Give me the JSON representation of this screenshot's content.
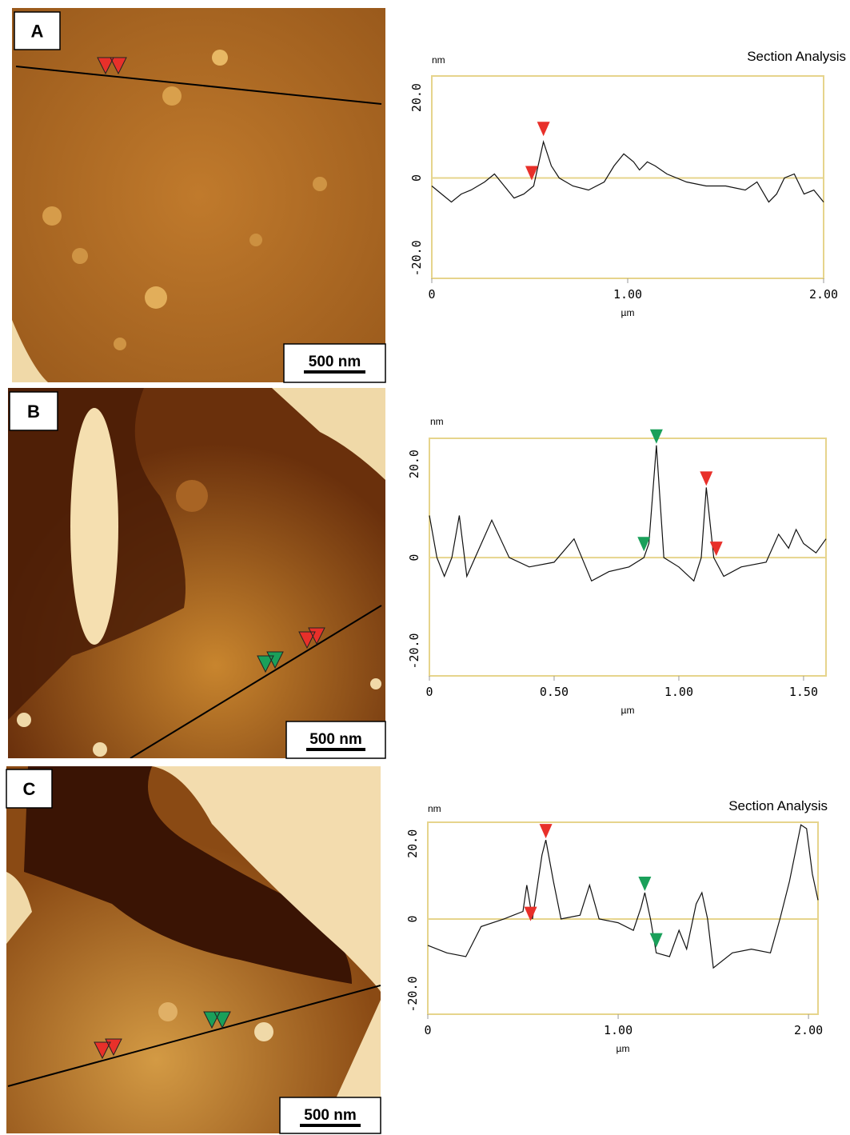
{
  "chart_data": [
    {
      "type": "line",
      "panel_label": "A",
      "scale_bar": "500 nm",
      "title": "Section Analysis",
      "y_label": "nm",
      "x_label": "µm",
      "x": [
        0,
        0.05,
        0.1,
        0.15,
        0.2,
        0.27,
        0.32,
        0.37,
        0.42,
        0.47,
        0.52,
        0.57,
        0.61,
        0.65,
        0.72,
        0.8,
        0.88,
        0.93,
        0.98,
        1.03,
        1.06,
        1.1,
        1.14,
        1.2,
        1.3,
        1.4,
        1.5,
        1.6,
        1.66,
        1.72,
        1.76,
        1.8,
        1.85,
        1.9,
        1.95,
        2.0
      ],
      "values": [
        -2,
        -4,
        -6,
        -4,
        -3,
        -1,
        1,
        -2,
        -5,
        -4,
        -2,
        9,
        3,
        0,
        -2,
        -3,
        -1,
        3,
        6,
        4,
        2,
        4,
        3,
        1,
        -1,
        -2,
        -2,
        -3,
        -1,
        -6,
        -4,
        0,
        1,
        -4,
        -3,
        -6
      ],
      "color": "#111111",
      "xlim": [
        0,
        2.0
      ],
      "ylim": [
        -25,
        25.4
      ],
      "xticks": [
        0,
        {
          "value": 1,
          "label": "1.00"
        },
        {
          "value": 2,
          "label": "2.00"
        }
      ],
      "yticks": [
        {
          "value": -20,
          "label": "-20.0"
        },
        0,
        {
          "value": 20,
          "label": "20.0"
        }
      ],
      "markers": [
        {
          "x": 0.51,
          "y": -1,
          "color": "#e8302a"
        },
        {
          "x": 0.57,
          "y": 10,
          "color": "#e8302a"
        }
      ]
    },
    {
      "type": "line",
      "panel_label": "B",
      "scale_bar": "500 nm",
      "y_label": "nm",
      "x_label": "µm",
      "x": [
        0,
        0.03,
        0.06,
        0.09,
        0.12,
        0.15,
        0.2,
        0.25,
        0.32,
        0.4,
        0.5,
        0.58,
        0.65,
        0.72,
        0.8,
        0.86,
        0.88,
        0.91,
        0.94,
        1.0,
        1.06,
        1.09,
        1.11,
        1.14,
        1.18,
        1.25,
        1.35,
        1.4,
        1.44,
        1.47,
        1.5,
        1.55,
        1.59
      ],
      "values": [
        9,
        0,
        -4,
        0,
        9,
        -4,
        2,
        8,
        0,
        -2,
        -1,
        4,
        -5,
        -3,
        -2,
        0,
        3,
        24,
        0,
        -2,
        -5,
        0,
        15,
        0,
        -4,
        -2,
        -1,
        5,
        2,
        6,
        3,
        1,
        4
      ],
      "color": "#111111",
      "xlim": [
        0,
        1.59
      ],
      "ylim": [
        -25.3,
        25.5
      ],
      "xticks": [
        0,
        {
          "value": 0.5,
          "label": "0.50"
        },
        {
          "value": 1,
          "label": "1.00"
        },
        {
          "value": 1.5,
          "label": "1.50"
        }
      ],
      "yticks": [
        {
          "value": -20,
          "label": "-20.0"
        },
        0,
        {
          "value": 20,
          "label": "20.0"
        }
      ],
      "markers": [
        {
          "x": 0.86,
          "y": 1,
          "color": "#1aa05a"
        },
        {
          "x": 0.91,
          "y": 24,
          "color": "#1aa05a"
        },
        {
          "x": 1.11,
          "y": 15,
          "color": "#e8302a"
        },
        {
          "x": 1.15,
          "y": 0,
          "color": "#e8302a"
        }
      ]
    },
    {
      "type": "line",
      "panel_label": "C",
      "scale_bar": "500 nm",
      "title": "Section Analysis",
      "y_label": "nm",
      "x_label": "µm",
      "x": [
        0,
        0.1,
        0.2,
        0.28,
        0.4,
        0.5,
        0.52,
        0.55,
        0.6,
        0.62,
        0.66,
        0.7,
        0.8,
        0.85,
        0.9,
        1.0,
        1.08,
        1.12,
        1.14,
        1.17,
        1.2,
        1.27,
        1.32,
        1.36,
        1.41,
        1.44,
        1.47,
        1.5,
        1.6,
        1.7,
        1.8,
        1.85,
        1.9,
        1.96,
        1.99,
        2.02,
        2.05
      ],
      "values": [
        -7,
        -9,
        -10,
        -2,
        0,
        2,
        9,
        0,
        17,
        21,
        10,
        0,
        1,
        9,
        0,
        -1,
        -3,
        3,
        7,
        0,
        -9,
        -10,
        -3,
        -8,
        4,
        7,
        0,
        -13,
        -9,
        -8,
        -9,
        0,
        10,
        25,
        24,
        12,
        5
      ],
      "color": "#111111",
      "xlim": [
        0,
        2.05
      ],
      "ylim": [
        -25.3,
        25.7
      ],
      "xticks": [
        0,
        {
          "value": 1,
          "label": "1.00"
        },
        {
          "value": 2,
          "label": "2.00"
        }
      ],
      "yticks": [
        {
          "value": -20,
          "label": "-20.0"
        },
        0,
        {
          "value": 20,
          "label": "20.0"
        }
      ],
      "markers": [
        {
          "x": 0.54,
          "y": -1,
          "color": "#e8302a"
        },
        {
          "x": 0.62,
          "y": 21,
          "color": "#e8302a"
        },
        {
          "x": 1.14,
          "y": 7,
          "color": "#1aa05a"
        },
        {
          "x": 1.2,
          "y": -8,
          "color": "#1aa05a"
        }
      ]
    }
  ]
}
